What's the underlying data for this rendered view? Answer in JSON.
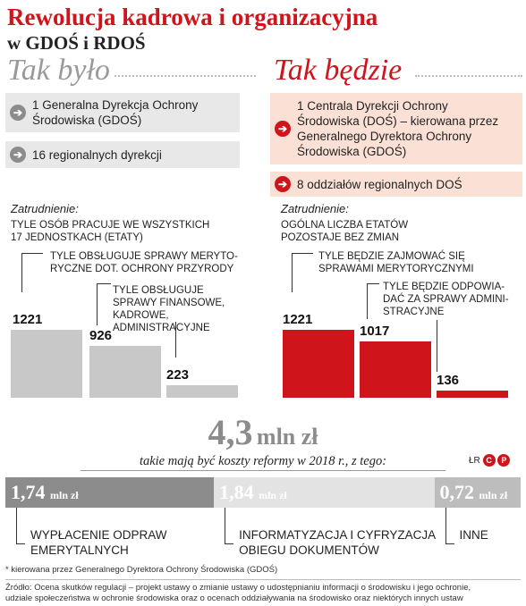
{
  "header": {
    "title": "Rewolucja kadrowa i organizacyjna",
    "subtitle": "w GDOŚ i RDOŚ"
  },
  "before": {
    "heading": "Tak było",
    "items": [
      "1 Generalna Dyrekcja Ochrony Środowiska (GDOŚ)",
      "16 regionalnych dyrekcji"
    ],
    "employment_label": "Zatrudnienie:",
    "bars": [
      {
        "label": "TYLE OSÓB PRACUJE WE WSZYSTKICH 17 JEDNOSTKACH (ETATY)",
        "value": 1221
      },
      {
        "label": "TYLE OBSŁUGUJE SPRAWY MERYTO-RYCZNE DOT. OCHRONY PRZYRODY",
        "value": 926
      },
      {
        "label": "TYLE OBSŁUGUJE SPRAWY FINANSOWE, KADROWE, ADMINISTRACYJNE",
        "value": 223
      }
    ]
  },
  "after": {
    "heading": "Tak będzie",
    "items": [
      "1 Centrala Dyrekcji Ochrony Środowiska (DOŚ) – kierowana przez Generalnego Dyrektora Ochrony Środowiska (GDOŚ)",
      "8 oddziałów regionalnych DOŚ"
    ],
    "employment_label": "Zatrudnienie:",
    "bars": [
      {
        "label": "OGÓLNA LICZBA ETATÓW POZOSTAJE BEZ ZMIAN",
        "value": 1221
      },
      {
        "label": "TYLE BĘDZIE ZAJMOWAĆ SIĘ SPRAWAMI MERYTORYCZNYMI",
        "value": 1017
      },
      {
        "label": "TYLE BĘDZIE ODPOWIA-DAĆ ZA SPRAWY ADMINI-STRACYJNE",
        "value": 136
      }
    ]
  },
  "costs": {
    "total_value": "4,3",
    "total_unit": "mln zł",
    "caption": "takie mają być koszty reformy w 2018 r., z tego:",
    "credit": "ŁR",
    "segments": [
      {
        "value": "1,74",
        "unit": "mln zł",
        "label": "WYPŁACENIE ODPRAW EMERYTALNYCH",
        "color": "#8c8c8c"
      },
      {
        "value": "1,84",
        "unit": "mln zł",
        "label": "INFORMATYZACJA I CYFRYZACJA OBIEGU DOKUMENTÓW",
        "color": "#e3e3e3"
      },
      {
        "value": "0,72",
        "unit": "mln zł",
        "label": "INNE",
        "color": "#bdbdbd"
      }
    ]
  },
  "footer": {
    "note": "* kierowana przez Generalnego Dyrektora Ochrony Środowiska (GDOŚ)",
    "source_line1": "Źródło: Ocena skutków regulacji – projekt ustawy o zmianie ustawy o udostępnianiu informacji o środowisku i jego ochronie,",
    "source_line2": "udziale społeczeństwa w ochronie środowiska oraz o ocenach oddziaływania na środowisko oraz niektórych innych ustaw"
  },
  "colors": {
    "red": "#d0141b",
    "grey_bar": "#c8c8c8",
    "pink_box": "#fbe1d5",
    "grey_box": "#e8e8e8"
  },
  "chart_data": [
    {
      "type": "bar",
      "categories": [
        "TYLE OSÓB PRACUJE WE WSZYSTKICH 17 JEDNOSTKACH (ETATY)",
        "TYLE OBSŁUGUJE SPRAWY MERYTO-RYCZNE DOT. OCHRONY PRZYRODY",
        "TYLE OBSŁUGUJE SPRAWY FINANSOWE, KADROWE, ADMINISTRACYJNE"
      ],
      "values": [
        1221,
        926,
        223
      ],
      "title": "Tak było"
    },
    {
      "type": "bar",
      "categories": [
        "OGÓLNA LICZBA ETATÓW POZOSTAJE BEZ ZMIAN",
        "TYLE BĘDZIE ZAJMOWAĆ SIĘ SPRAWAMI MERYTORYCZNYMI",
        "TYLE BĘDZIE ODPOWIA-DAĆ ZA SPRAWY ADMINI-STRACYJNE"
      ],
      "values": [
        1221,
        1017,
        136
      ],
      "title": "Tak będzie"
    },
    {
      "type": "bar",
      "categories": [
        "WYPŁACENIE ODPRAW EMERYTALNYCH",
        "INFORMATYZACJA I CYFRYZACJA OBIEGU DOKUMENTÓW",
        "INNE"
      ],
      "values": [
        1.74,
        1.84,
        0.72
      ],
      "total": 4.3
    }
  ]
}
